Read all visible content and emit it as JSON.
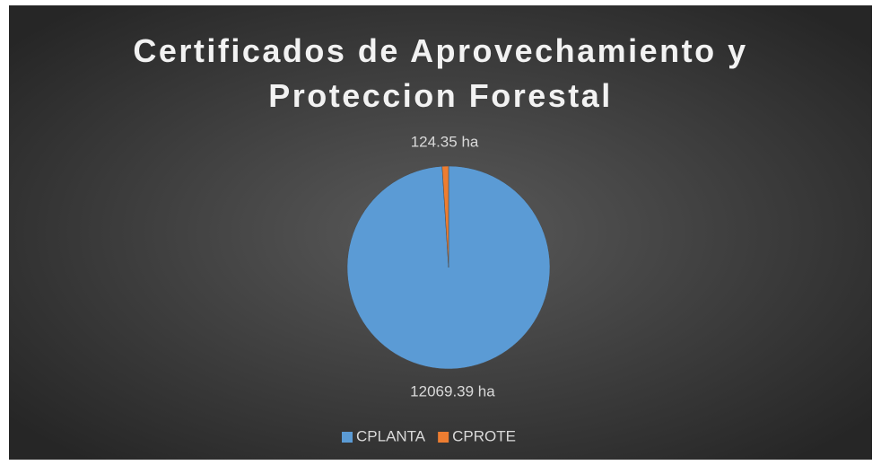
{
  "chart_data": {
    "type": "pie",
    "title": "Certificados de Aprovechamiento y Proteccion Forestal",
    "categories": [
      "CPLANTA",
      "CPROTE"
    ],
    "values": [
      12069.39,
      124.35
    ],
    "value_labels": [
      "12069.39 ha",
      "124.35 ha"
    ],
    "colors": [
      "#5b9bd5",
      "#ed7d31"
    ],
    "legend": "bottom"
  }
}
